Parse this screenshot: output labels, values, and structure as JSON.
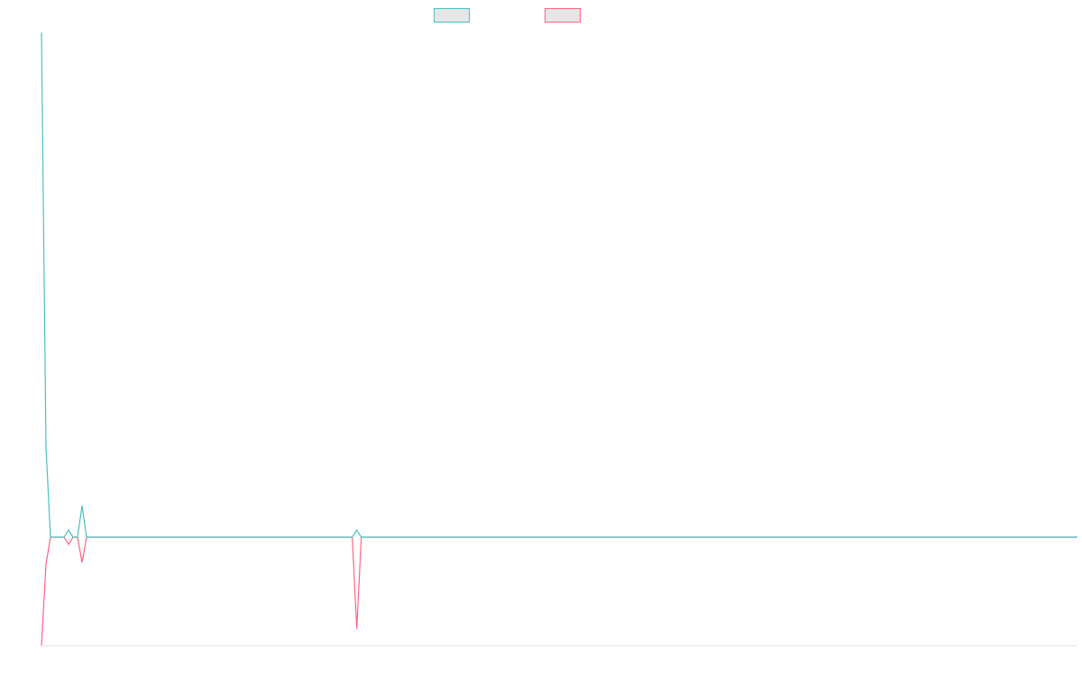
{
  "chart_data": {
    "type": "line",
    "title": "",
    "xlabel": "",
    "ylabel": "",
    "grid": false,
    "legend_position": "top-center",
    "xlim": [
      0,
      230
    ],
    "ylim": [
      -120,
      560
    ],
    "series": [
      {
        "color": "#4bc0c0",
        "x": [
          0,
          1,
          2,
          3,
          4,
          5,
          6,
          7,
          8,
          9,
          10,
          11,
          12,
          13,
          14,
          15,
          69,
          70,
          71,
          230
        ],
        "y": [
          560,
          100,
          0,
          0,
          0,
          0,
          8,
          0,
          0,
          35,
          0,
          0,
          0,
          0,
          0,
          0,
          0,
          8,
          0,
          0
        ]
      },
      {
        "color": "#ff6384",
        "x": [
          0,
          1,
          2,
          3,
          4,
          5,
          6,
          7,
          8,
          9,
          10,
          11,
          12,
          13,
          14,
          15,
          69,
          70,
          71,
          230
        ],
        "y": [
          -120,
          -30,
          0,
          0,
          0,
          0,
          -8,
          0,
          0,
          -28,
          0,
          0,
          0,
          0,
          0,
          0,
          0,
          -102,
          0,
          0
        ]
      }
    ]
  }
}
